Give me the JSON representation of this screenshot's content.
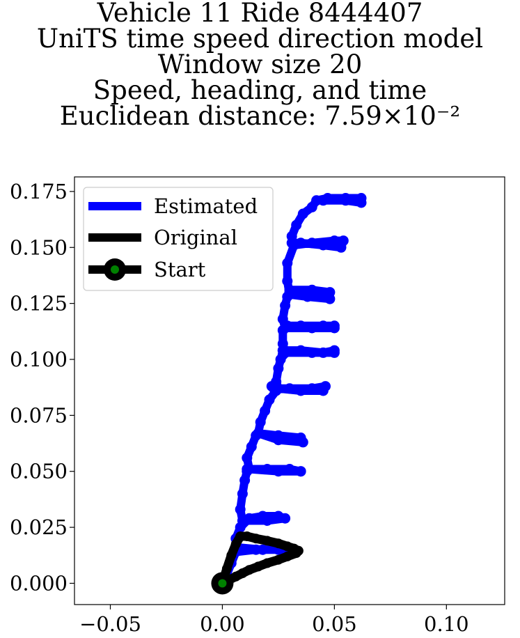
{
  "chart_data": {
    "type": "line",
    "title_lines": [
      "Vehicle 11 Ride 8444407",
      "UniTS time speed direction model",
      "Window size 20",
      "Speed, heading, and time",
      "Euclidean distance: 7.59×10⁻²"
    ],
    "xlabel": "",
    "ylabel": "",
    "xlim": [
      -0.066,
      0.126
    ],
    "ylim": [
      -0.0095,
      0.1815
    ],
    "xticks": [
      {
        "value": -0.05,
        "label": "−0.05"
      },
      {
        "value": 0.0,
        "label": "0.00"
      },
      {
        "value": 0.05,
        "label": "0.05"
      },
      {
        "value": 0.1,
        "label": "0.10"
      }
    ],
    "yticks": [
      {
        "value": 0.0,
        "label": "0.000"
      },
      {
        "value": 0.025,
        "label": "0.025"
      },
      {
        "value": 0.05,
        "label": "0.050"
      },
      {
        "value": 0.075,
        "label": "0.075"
      },
      {
        "value": 0.1,
        "label": "0.100"
      },
      {
        "value": 0.125,
        "label": "0.125"
      },
      {
        "value": 0.15,
        "label": "0.150"
      },
      {
        "value": 0.175,
        "label": "0.175"
      }
    ],
    "legend_position": "top-left",
    "series": [
      {
        "name": "Estimated",
        "color": "#0000ff",
        "x": [
          0.0,
          0.002,
          0.004,
          0.006,
          0.015,
          0.025,
          0.031,
          0.018,
          0.007,
          0.006,
          0.008,
          0.012,
          0.018,
          0.025,
          0.028,
          0.02,
          0.009,
          0.008,
          0.009,
          0.01,
          0.011,
          0.011,
          0.02,
          0.03,
          0.035,
          0.035,
          0.025,
          0.012,
          0.011,
          0.013,
          0.015,
          0.016,
          0.016,
          0.025,
          0.035,
          0.036,
          0.025,
          0.016,
          0.017,
          0.019,
          0.021,
          0.024,
          0.022,
          0.023,
          0.03,
          0.04,
          0.046,
          0.045,
          0.035,
          0.025,
          0.024,
          0.025,
          0.026,
          0.027,
          0.028,
          0.027,
          0.027,
          0.035,
          0.045,
          0.05,
          0.05,
          0.04,
          0.028,
          0.027,
          0.027,
          0.029,
          0.035,
          0.045,
          0.05,
          0.05,
          0.04,
          0.028,
          0.027,
          0.028,
          0.029,
          0.03,
          0.03,
          0.04,
          0.048,
          0.048,
          0.038,
          0.03,
          0.029,
          0.029,
          0.032,
          0.04,
          0.05,
          0.054,
          0.053,
          0.045,
          0.035,
          0.031,
          0.031,
          0.033,
          0.036,
          0.04,
          0.042,
          0.047,
          0.055,
          0.062,
          0.062,
          0.055,
          0.045
        ],
        "y": [
          0.0,
          0.004,
          0.009,
          0.014,
          0.015,
          0.015,
          0.015,
          0.015,
          0.016,
          0.02,
          0.025,
          0.029,
          0.03,
          0.03,
          0.029,
          0.028,
          0.028,
          0.033,
          0.04,
          0.046,
          0.05,
          0.051,
          0.051,
          0.051,
          0.05,
          0.05,
          0.05,
          0.051,
          0.056,
          0.061,
          0.066,
          0.067,
          0.067,
          0.066,
          0.065,
          0.063,
          0.064,
          0.067,
          0.072,
          0.077,
          0.082,
          0.086,
          0.088,
          0.087,
          0.087,
          0.087,
          0.088,
          0.086,
          0.086,
          0.087,
          0.09,
          0.096,
          0.1,
          0.102,
          0.103,
          0.104,
          0.104,
          0.104,
          0.103,
          0.104,
          0.103,
          0.103,
          0.103,
          0.107,
          0.113,
          0.115,
          0.115,
          0.115,
          0.115,
          0.114,
          0.114,
          0.114,
          0.118,
          0.124,
          0.128,
          0.13,
          0.131,
          0.131,
          0.13,
          0.127,
          0.128,
          0.129,
          0.135,
          0.143,
          0.151,
          0.152,
          0.153,
          0.153,
          0.15,
          0.151,
          0.152,
          0.152,
          0.155,
          0.16,
          0.165,
          0.168,
          0.171,
          0.172,
          0.172,
          0.172,
          0.17,
          0.171,
          0.171
        ]
      },
      {
        "name": "Original",
        "color": "#000000",
        "x": [
          0.0,
          0.003,
          0.006,
          0.009,
          0.012,
          0.016,
          0.02,
          0.025,
          0.029,
          0.033,
          0.034,
          0.032,
          0.029,
          0.025,
          0.02,
          0.015,
          0.011,
          0.008,
          0.006,
          0.004,
          0.002,
          0.0
        ],
        "y": [
          0.0,
          0.0015,
          0.003,
          0.0045,
          0.006,
          0.0075,
          0.009,
          0.0105,
          0.012,
          0.0135,
          0.0145,
          0.0155,
          0.0165,
          0.0178,
          0.019,
          0.02,
          0.021,
          0.021,
          0.0175,
          0.0125,
          0.0065,
          0.0
        ]
      }
    ],
    "start": {
      "name": "Start",
      "x": 0.0,
      "y": 0.0,
      "ring_color": "#000000",
      "fill_color": "#008000"
    }
  }
}
